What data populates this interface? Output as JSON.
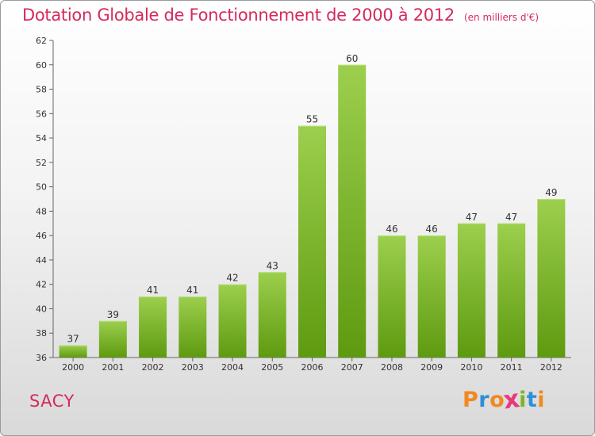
{
  "title": {
    "main": "Dotation Globale de Fonctionnement de 2000 à 2012",
    "unit": "(en milliers d'€)"
  },
  "commune": "SACY",
  "brand": {
    "letters": [
      "P",
      "r",
      "o",
      "x",
      "i",
      "t",
      "i"
    ],
    "colors": [
      "#f08a1f",
      "#2f8fd6",
      "#f08a1f",
      "#e8397a",
      "#7bb52a",
      "#2f8fd6",
      "#f08a1f"
    ]
  },
  "colors": {
    "bar_top": "#9ccf4d",
    "bar_bottom": "#5e9a10",
    "text": "#333333",
    "accent": "#d42a5b"
  },
  "chart_data": {
    "type": "bar",
    "categories": [
      "2000",
      "2001",
      "2002",
      "2003",
      "2004",
      "2005",
      "2006",
      "2007",
      "2008",
      "2009",
      "2010",
      "2011",
      "2012"
    ],
    "values": [
      37,
      39,
      41,
      41,
      42,
      43,
      55,
      60,
      46,
      46,
      47,
      47,
      49
    ],
    "ylim": [
      36,
      62
    ],
    "yticks": [
      36,
      38,
      40,
      42,
      44,
      46,
      48,
      50,
      52,
      54,
      56,
      58,
      60,
      62
    ],
    "title": "Dotation Globale de Fonctionnement de 2000 à 2012",
    "unit": "(en milliers d'€)",
    "xlabel": "",
    "ylabel": "",
    "grid": false,
    "legend": "none"
  }
}
